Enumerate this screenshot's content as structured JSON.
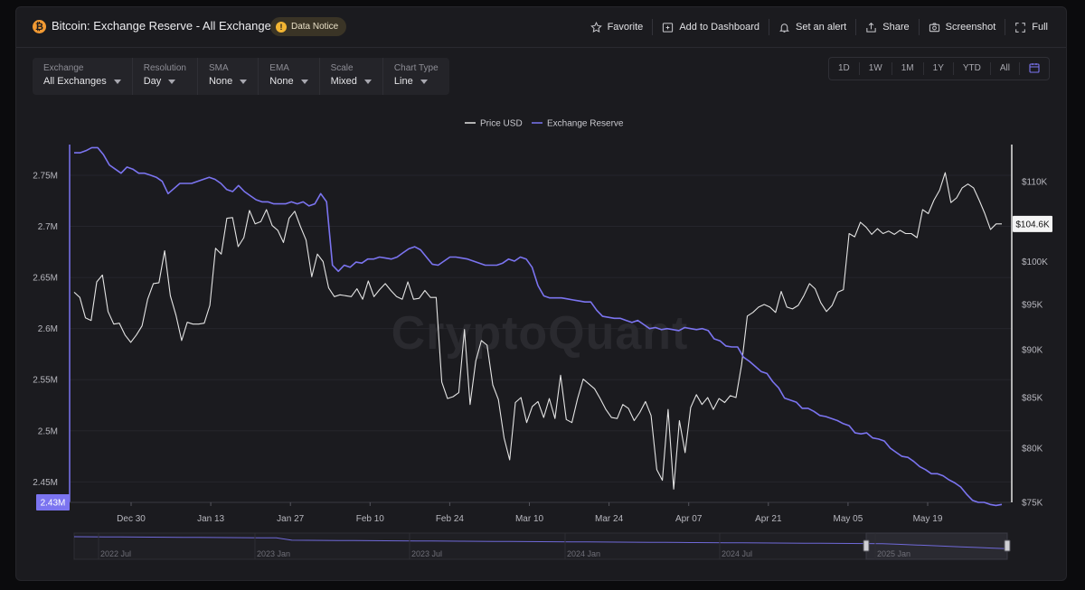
{
  "header": {
    "title": "Bitcoin: Exchange Reserve - All Exchanges",
    "notice_label": "Data Notice",
    "actions": [
      {
        "label": "Favorite",
        "icon": "star-icon"
      },
      {
        "label": "Add to Dashboard",
        "icon": "dashboard-add-icon"
      },
      {
        "label": "Set an alert",
        "icon": "bell-icon"
      },
      {
        "label": "Share",
        "icon": "share-icon"
      },
      {
        "label": "Screenshot",
        "icon": "camera-icon"
      },
      {
        "label": "Full",
        "icon": "fullscreen-icon"
      }
    ]
  },
  "controls": [
    {
      "label": "Exchange",
      "value": "All Exchanges"
    },
    {
      "label": "Resolution",
      "value": "Day"
    },
    {
      "label": "SMA",
      "value": "None"
    },
    {
      "label": "EMA",
      "value": "None"
    },
    {
      "label": "Scale",
      "value": "Mixed"
    },
    {
      "label": "Chart Type",
      "value": "Line"
    }
  ],
  "ranges": [
    "1D",
    "1W",
    "1M",
    "1Y",
    "YTD",
    "All"
  ],
  "watermark": "CryptoQuant",
  "navigator": {
    "labels": [
      "2022 Jul",
      "2023 Jan",
      "2023 Jul",
      "2024 Jan",
      "2024 Jul",
      "2025 Jan"
    ]
  },
  "colors": {
    "reserve": "#7b74f0",
    "price": "#e4e4e4",
    "accent_btc": "#f29a33"
  },
  "chart_data": {
    "type": "line",
    "legend_placement": "top-center",
    "x_tick_labels": [
      "Dec 30",
      "Jan 13",
      "Jan 27",
      "Feb 10",
      "Feb 24",
      "Mar 10",
      "Mar 24",
      "Apr 07",
      "Apr 21",
      "May 05",
      "May 19"
    ],
    "left_axis": {
      "ticks": [
        "2.45M",
        "2.5M",
        "2.55M",
        "2.6M",
        "2.65M",
        "2.7M",
        "2.75M"
      ],
      "ylim": [
        2.43,
        2.78
      ],
      "last_value_label": "2.43M"
    },
    "right_axis": {
      "ticks": [
        "$75K",
        "$80K",
        "$85K",
        "$90K",
        "$95K",
        "$100K",
        "$110K"
      ],
      "ylim": [
        75,
        115
      ],
      "last_value_label": "$104.6K"
    },
    "series": [
      {
        "name": "Price USD",
        "axis": "right",
        "values": [
          96.4,
          95.8,
          93.5,
          93.2,
          97.6,
          98.4,
          94.2,
          92.8,
          92.9,
          91.6,
          90.8,
          91.6,
          92.6,
          95.6,
          97.4,
          97.5,
          101.3,
          96.0,
          93.8,
          91.0,
          93.0,
          92.8,
          92.8,
          92.9,
          94.9,
          101.6,
          100.9,
          105.3,
          105.4,
          101.8,
          102.9,
          106.3,
          104.6,
          104.9,
          106.4,
          104.4,
          103.8,
          102.3,
          105.3,
          106.2,
          104.3,
          102.6,
          98.2,
          100.9,
          100.0,
          96.9,
          95.9,
          96.1,
          96.0,
          95.9,
          96.8,
          95.6,
          97.7,
          95.9,
          96.7,
          97.4,
          96.6,
          95.9,
          95.6,
          97.6,
          95.6,
          95.7,
          96.6,
          95.8,
          95.8,
          86.6,
          84.9,
          85.1,
          85.5,
          92.2,
          84.3,
          88.8,
          91.0,
          90.5,
          86.3,
          84.8,
          81.0,
          78.9,
          84.5,
          85.0,
          82.5,
          84.1,
          84.6,
          83.0,
          84.9,
          82.9,
          87.3,
          82.8,
          82.5,
          84.9,
          86.9,
          86.4,
          85.9,
          84.9,
          83.8,
          83.0,
          82.9,
          84.3,
          83.9,
          82.7,
          83.5,
          84.6,
          83.2,
          78.0,
          77.0,
          83.8,
          76.2,
          82.7,
          79.6,
          84.0,
          85.3,
          84.3,
          85.0,
          83.8,
          84.9,
          84.5,
          85.2,
          85.0,
          88.4,
          93.7,
          94.1,
          94.7,
          95.0,
          94.7,
          94.1,
          96.5,
          94.7,
          94.5,
          94.9,
          96.0,
          97.4,
          96.8,
          95.2,
          94.2,
          94.9,
          96.4,
          96.7,
          103.4,
          103.0,
          104.8,
          104.2,
          103.3,
          104.0,
          103.4,
          103.7,
          103.3,
          103.8,
          103.4,
          103.4,
          102.9,
          106.4,
          105.9,
          107.6,
          108.9,
          111.2,
          107.3,
          107.9,
          109.2,
          109.7,
          109.2,
          107.6,
          105.9,
          103.9,
          104.6,
          104.6
        ]
      },
      {
        "name": "Exchange Reserve",
        "axis": "left",
        "values": [
          2.772,
          2.772,
          2.774,
          2.777,
          2.777,
          2.77,
          2.76,
          2.756,
          2.752,
          2.758,
          2.756,
          2.752,
          2.752,
          2.75,
          2.748,
          2.744,
          2.732,
          2.737,
          2.742,
          2.742,
          2.742,
          2.744,
          2.746,
          2.748,
          2.746,
          2.742,
          2.736,
          2.734,
          2.74,
          2.734,
          2.73,
          2.726,
          2.724,
          2.724,
          2.722,
          2.722,
          2.722,
          2.724,
          2.722,
          2.724,
          2.72,
          2.722,
          2.732,
          2.724,
          2.662,
          2.656,
          2.662,
          2.66,
          2.665,
          2.664,
          2.668,
          2.668,
          2.67,
          2.669,
          2.668,
          2.67,
          2.674,
          2.678,
          2.68,
          2.677,
          2.67,
          2.663,
          2.662,
          2.666,
          2.67,
          2.67,
          2.669,
          2.668,
          2.666,
          2.664,
          2.662,
          2.662,
          2.662,
          2.664,
          2.668,
          2.666,
          2.67,
          2.668,
          2.66,
          2.642,
          2.632,
          2.63,
          2.63,
          2.63,
          2.629,
          2.628,
          2.627,
          2.626,
          2.626,
          2.618,
          2.612,
          2.611,
          2.61,
          2.61,
          2.608,
          2.606,
          2.608,
          2.604,
          2.6,
          2.601,
          2.599,
          2.6,
          2.599,
          2.598,
          2.601,
          2.6,
          2.599,
          2.6,
          2.598,
          2.59,
          2.588,
          2.583,
          2.582,
          2.582,
          2.572,
          2.568,
          2.563,
          2.558,
          2.556,
          2.548,
          2.542,
          2.532,
          2.53,
          2.528,
          2.522,
          2.522,
          2.519,
          2.515,
          2.514,
          2.512,
          2.51,
          2.507,
          2.505,
          2.498,
          2.497,
          2.498,
          2.493,
          2.492,
          2.49,
          2.483,
          2.479,
          2.475,
          2.474,
          2.47,
          2.465,
          2.462,
          2.458,
          2.458,
          2.456,
          2.452,
          2.449,
          2.445,
          2.438,
          2.432,
          2.43,
          2.43,
          2.428,
          2.427,
          2.428
        ]
      }
    ],
    "annotations": [
      "2.43M",
      "$104.6K"
    ]
  }
}
